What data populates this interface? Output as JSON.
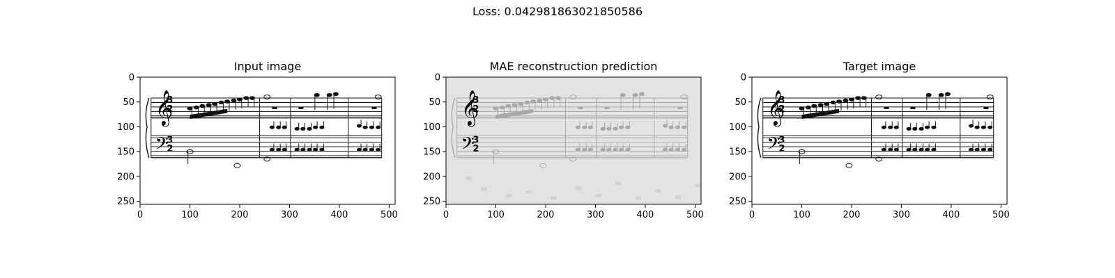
{
  "figure": {
    "suptitle": "Loss: 0.042981863021850586"
  },
  "chart_data": [
    {
      "type": "image",
      "title": "Input image",
      "xlim": [
        0,
        512
      ],
      "ylim": [
        256,
        0
      ],
      "xticks": [
        0,
        100,
        200,
        300,
        400,
        500
      ],
      "yticks": [
        0,
        50,
        100,
        150,
        200,
        250
      ],
      "background": "#ffffff",
      "ink": "#111111",
      "staff_frame": [
        0,
        0,
        0
      ]
    },
    {
      "type": "image",
      "title": "MAE reconstruction prediction",
      "xlim": [
        0,
        512
      ],
      "ylim": [
        256,
        0
      ],
      "xticks": [
        0,
        100,
        200,
        300,
        400,
        500
      ],
      "yticks": [
        0,
        50,
        100,
        150,
        200,
        250
      ],
      "background": "#e3e3e3",
      "ink": "#a8a8a8",
      "staff_frame": [
        0,
        0,
        0
      ]
    },
    {
      "type": "image",
      "title": "Target image",
      "xlim": [
        0,
        512
      ],
      "ylim": [
        256,
        0
      ],
      "xticks": [
        0,
        100,
        200,
        300,
        400,
        500
      ],
      "yticks": [
        0,
        50,
        100,
        150,
        200,
        250
      ],
      "background": "#ffffff",
      "ink": "#111111",
      "staff_frame": [
        0,
        0,
        0
      ]
    }
  ]
}
